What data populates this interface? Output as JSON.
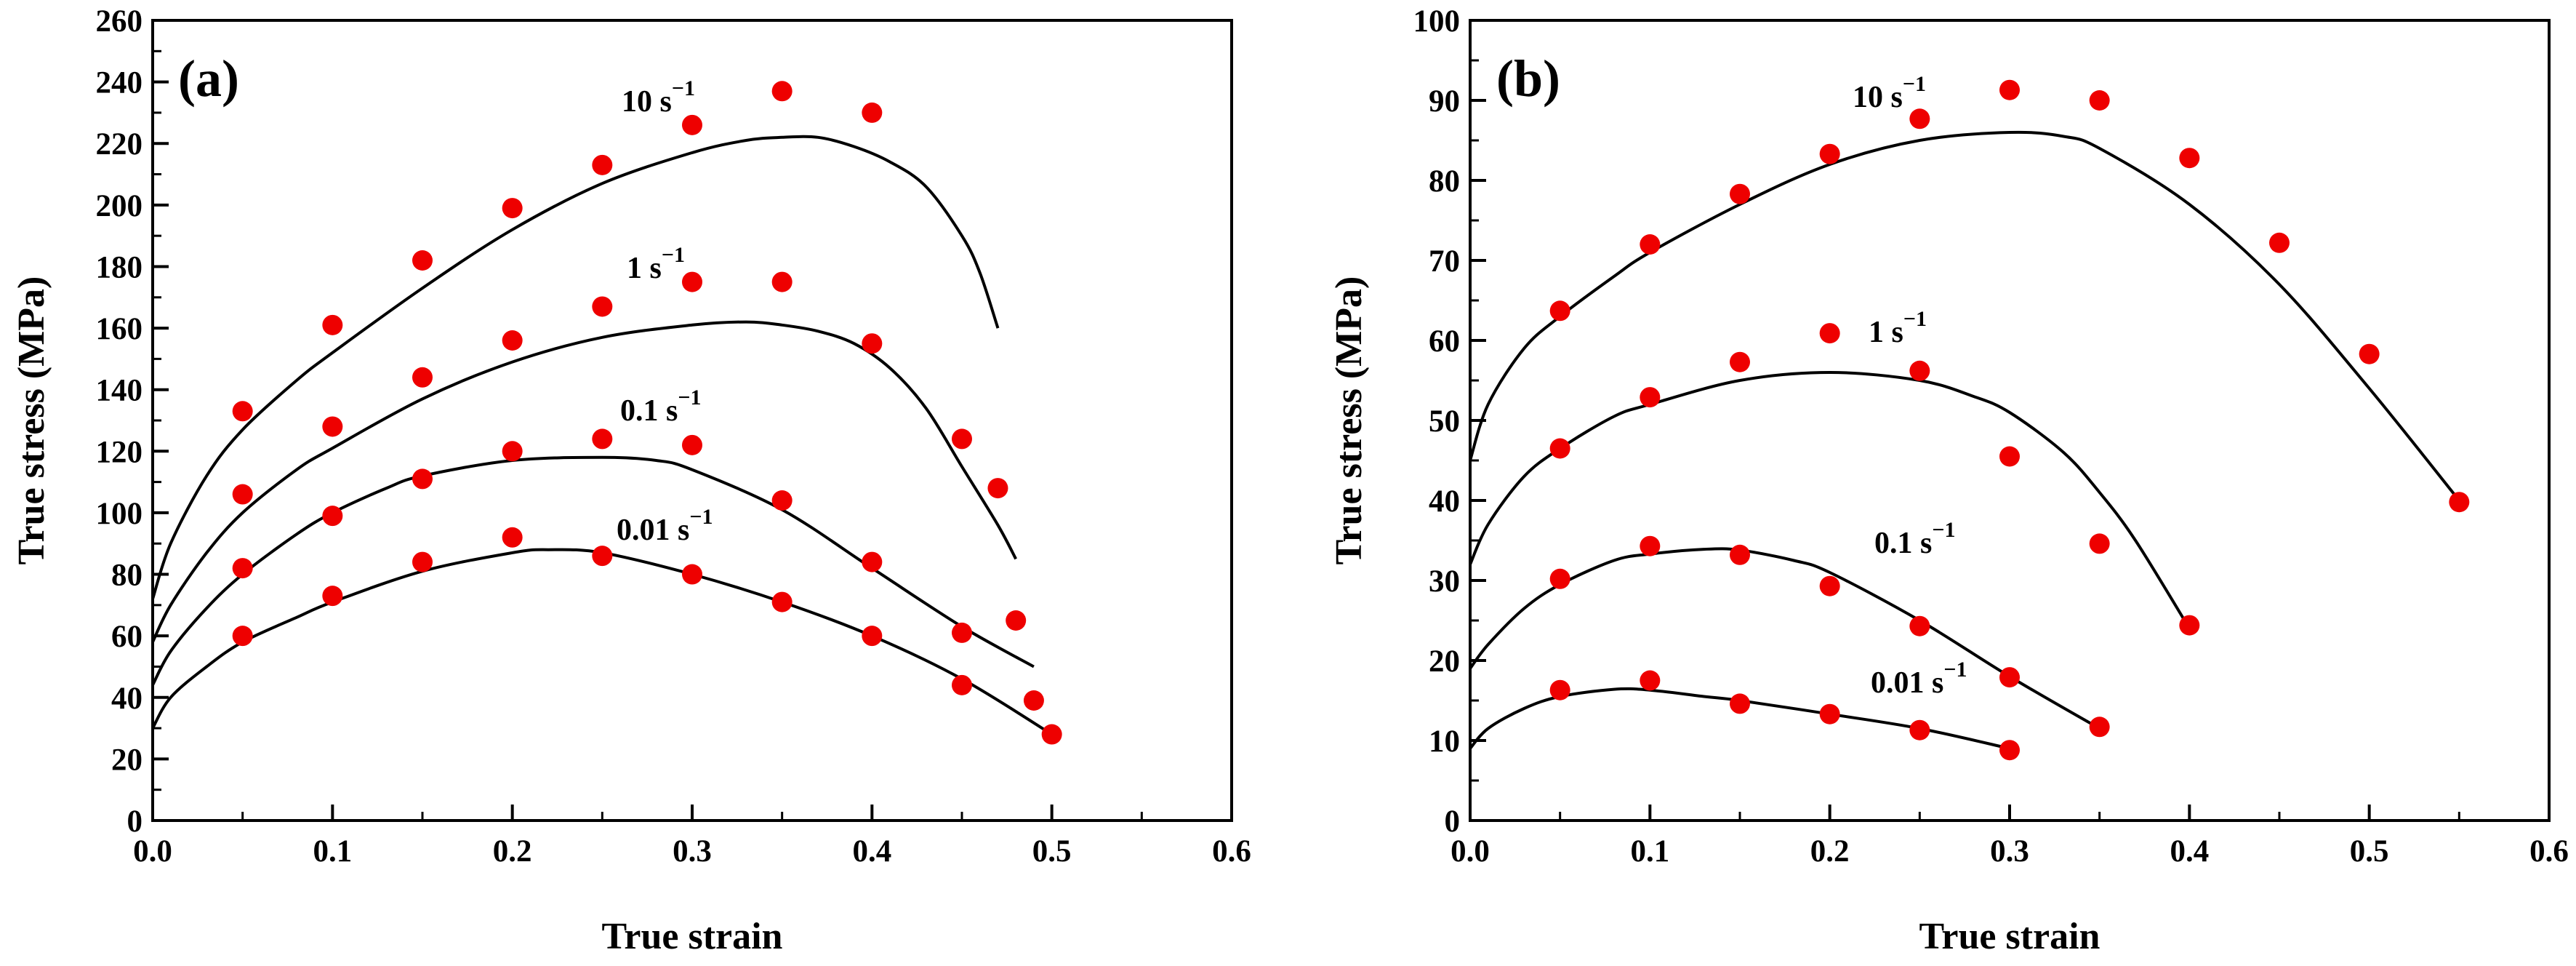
{
  "chart_data": [
    {
      "type": "scatter",
      "panel": "(a)",
      "xlabel": "True strain",
      "ylabel": "True stress (MPa)",
      "xlim": [
        0,
        0.6
      ],
      "ylim": [
        0,
        260
      ],
      "x_ticks": [
        "0.0",
        "0.1",
        "0.2",
        "0.3",
        "0.4",
        "0.5",
        "0.6"
      ],
      "y_ticks": [
        "0",
        "20",
        "40",
        "60",
        "80",
        "100",
        "120",
        "140",
        "160",
        "180",
        "200",
        "220",
        "240",
        "260"
      ],
      "series": [
        {
          "name": "10 s-1",
          "label_main": "10 s",
          "label_sup": "−1",
          "marker_x": [
            0.05,
            0.1,
            0.15,
            0.2,
            0.25,
            0.3,
            0.35,
            0.4
          ],
          "marker_y": [
            133,
            161,
            182,
            199,
            213,
            226,
            237,
            230
          ],
          "curve_x": [
            0.0,
            0.01,
            0.03,
            0.05,
            0.08,
            0.1,
            0.15,
            0.2,
            0.25,
            0.3,
            0.33,
            0.35,
            0.37,
            0.39,
            0.41,
            0.43,
            0.45,
            0.46,
            0.47
          ],
          "curve_y": [
            72,
            90,
            112,
            127,
            143,
            152,
            173,
            192,
            207,
            217,
            221,
            222,
            222,
            219,
            214,
            206,
            190,
            178,
            160
          ]
        },
        {
          "name": "1 s-1",
          "label_main": "1 s",
          "label_sup": "−1",
          "marker_x": [
            0.05,
            0.1,
            0.15,
            0.2,
            0.25,
            0.3,
            0.35,
            0.4,
            0.45,
            0.47
          ],
          "marker_y": [
            106,
            128,
            144,
            156,
            167,
            175,
            175,
            155,
            124,
            108
          ],
          "curve_x": [
            0.0,
            0.01,
            0.03,
            0.05,
            0.08,
            0.1,
            0.15,
            0.2,
            0.25,
            0.3,
            0.33,
            0.35,
            0.37,
            0.39,
            0.41,
            0.43,
            0.45,
            0.47,
            0.48
          ],
          "curve_y": [
            58,
            70,
            87,
            100,
            114,
            121,
            137,
            149,
            157,
            161,
            162,
            161,
            159,
            155,
            147,
            134,
            115,
            96,
            85
          ]
        },
        {
          "name": "0.1 s-1",
          "label_main": "0.1 s",
          "label_sup": "−1",
          "marker_x": [
            0.05,
            0.1,
            0.15,
            0.2,
            0.25,
            0.3,
            0.35,
            0.4,
            0.45,
            0.48
          ],
          "marker_y": [
            82,
            99,
            111,
            120,
            124,
            122,
            104,
            84,
            61,
            65
          ],
          "curve_x": [
            0.0,
            0.01,
            0.03,
            0.05,
            0.08,
            0.1,
            0.13,
            0.15,
            0.2,
            0.25,
            0.28,
            0.3,
            0.35,
            0.4,
            0.45,
            0.49
          ],
          "curve_y": [
            44,
            55,
            69,
            80,
            93,
            100,
            108,
            112,
            117,
            118,
            117,
            114,
            101,
            82,
            63,
            50
          ]
        },
        {
          "name": "0.01 s-1",
          "label_main": "0.01 s",
          "label_sup": "−1",
          "marker_x": [
            0.05,
            0.1,
            0.15,
            0.2,
            0.25,
            0.3,
            0.35,
            0.4,
            0.45,
            0.49,
            0.5
          ],
          "marker_y": [
            60,
            73,
            84,
            92,
            86,
            80,
            71,
            60,
            44,
            39,
            28
          ],
          "curve_x": [
            0.0,
            0.01,
            0.03,
            0.05,
            0.08,
            0.1,
            0.15,
            0.2,
            0.22,
            0.25,
            0.3,
            0.35,
            0.4,
            0.45,
            0.5
          ],
          "curve_y": [
            30,
            40,
            50,
            58,
            66,
            71,
            81,
            87,
            88,
            87,
            80,
            71,
            60,
            46,
            28
          ]
        }
      ]
    },
    {
      "type": "scatter",
      "panel": "(b)",
      "xlabel": "True strain",
      "ylabel": "True stress (MPa)",
      "xlim": [
        0,
        0.6
      ],
      "ylim": [
        0,
        100
      ],
      "x_ticks": [
        "0.0",
        "0.1",
        "0.2",
        "0.3",
        "0.4",
        "0.5",
        "0.6"
      ],
      "y_ticks": [
        "0",
        "10",
        "20",
        "30",
        "40",
        "50",
        "60",
        "70",
        "80",
        "90",
        "100"
      ],
      "series": [
        {
          "name": "10 s-1",
          "label_main": "10 s",
          "label_sup": "−1",
          "marker_x": [
            0.05,
            0.1,
            0.15,
            0.2,
            0.25,
            0.3,
            0.35,
            0.4,
            0.45,
            0.5,
            0.55
          ],
          "marker_y": [
            63.7,
            72.0,
            78.3,
            83.3,
            87.7,
            91.3,
            90.0,
            82.8,
            72.2,
            58.3,
            39.8
          ],
          "curve_x": [
            0.0,
            0.01,
            0.03,
            0.05,
            0.08,
            0.1,
            0.15,
            0.2,
            0.25,
            0.3,
            0.33,
            0.35,
            0.4,
            0.45,
            0.5,
            0.55
          ],
          "curve_y": [
            45,
            52,
            59,
            63,
            68,
            71,
            77,
            82,
            85,
            86,
            85.5,
            84,
            77,
            67,
            54,
            40
          ]
        },
        {
          "name": "1 s-1",
          "label_main": "1 s",
          "label_sup": "−1",
          "marker_x": [
            0.05,
            0.1,
            0.15,
            0.2,
            0.25,
            0.3,
            0.35,
            0.4
          ],
          "marker_y": [
            46.5,
            52.9,
            57.3,
            60.9,
            56.2,
            45.5,
            34.6,
            24.4
          ],
          "curve_x": [
            0.0,
            0.01,
            0.03,
            0.05,
            0.08,
            0.1,
            0.15,
            0.2,
            0.25,
            0.28,
            0.3,
            0.33,
            0.35,
            0.37,
            0.4
          ],
          "curve_y": [
            32,
            37,
            43,
            46.5,
            50.5,
            52,
            55,
            56,
            55,
            53,
            51,
            46,
            41,
            35,
            24
          ]
        },
        {
          "name": "0.1 s-1",
          "label_main": "0.1 s",
          "label_sup": "−1",
          "marker_x": [
            0.05,
            0.1,
            0.15,
            0.2,
            0.25,
            0.3,
            0.35
          ],
          "marker_y": [
            30.2,
            34.3,
            33.2,
            29.3,
            24.3,
            17.9,
            11.7
          ],
          "curve_x": [
            0.0,
            0.01,
            0.03,
            0.05,
            0.08,
            0.1,
            0.13,
            0.15,
            0.18,
            0.2,
            0.25,
            0.3,
            0.35
          ],
          "curve_y": [
            19,
            22,
            26.5,
            29.5,
            32.5,
            33.3,
            33.9,
            33.8,
            32.5,
            31,
            25,
            18,
            11.5
          ]
        },
        {
          "name": "0.01 s-1",
          "label_main": "0.01 s",
          "label_sup": "−1",
          "marker_x": [
            0.05,
            0.1,
            0.15,
            0.2,
            0.25,
            0.3
          ],
          "marker_y": [
            16.3,
            17.5,
            14.6,
            13.3,
            11.3,
            8.8
          ],
          "curve_x": [
            0.0,
            0.01,
            0.03,
            0.05,
            0.08,
            0.1,
            0.13,
            0.15,
            0.2,
            0.25,
            0.3
          ],
          "curve_y": [
            9,
            11.5,
            14,
            15.5,
            16.4,
            16.3,
            15.5,
            15,
            13.3,
            11.5,
            9
          ]
        }
      ]
    }
  ]
}
